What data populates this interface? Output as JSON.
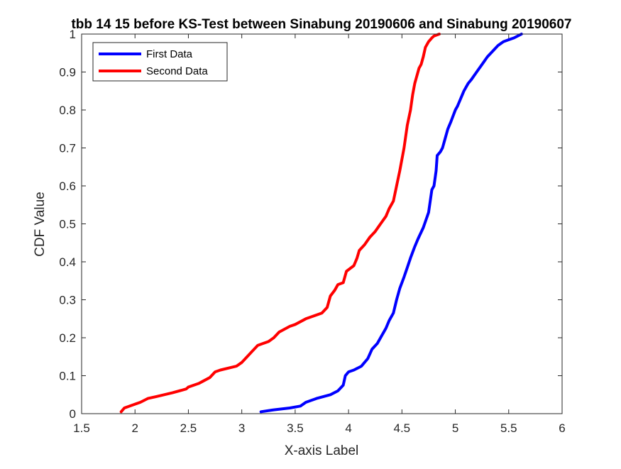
{
  "chart_data": {
    "type": "line",
    "title": "tbb 14 15 before KS-Test between Sinabung 20190606 and Sinabung 20190607",
    "xlabel": "X-axis Label",
    "ylabel": "CDF Value",
    "xlim": [
      1.5,
      6
    ],
    "ylim": [
      0,
      1
    ],
    "xticks": [
      1.5,
      2,
      2.5,
      3,
      3.5,
      4,
      4.5,
      5,
      5.5,
      6
    ],
    "xtick_labels": [
      "1.5",
      "2",
      "2.5",
      "3",
      "3.5",
      "4",
      "4.5",
      "5",
      "5.5",
      "6"
    ],
    "yticks": [
      0,
      0.1,
      0.2,
      0.3,
      0.4,
      0.5,
      0.6,
      0.7,
      0.8,
      0.9,
      1
    ],
    "ytick_labels": [
      "0",
      "0.1",
      "0.2",
      "0.3",
      "0.4",
      "0.5",
      "0.6",
      "0.7",
      "0.8",
      "0.9",
      "1"
    ],
    "grid": false,
    "legend_position": "top-left",
    "series": [
      {
        "name": "First Data",
        "color": "#0000ff",
        "x": [
          3.18,
          3.3,
          3.45,
          3.55,
          3.6,
          3.7,
          3.83,
          3.9,
          3.95,
          3.97,
          4.0,
          4.05,
          4.12,
          4.18,
          4.22,
          4.27,
          4.3,
          4.35,
          4.38,
          4.42,
          4.45,
          4.48,
          4.52,
          4.55,
          4.58,
          4.62,
          4.65,
          4.7,
          4.75,
          4.78,
          4.8,
          4.82,
          4.83,
          4.86,
          4.88,
          4.9,
          4.93,
          4.96,
          5.0,
          5.02,
          5.05,
          5.08,
          5.12,
          5.15,
          5.2,
          5.25,
          5.3,
          5.35,
          5.4,
          5.45,
          5.5,
          5.55,
          5.62
        ],
        "y": [
          0.005,
          0.01,
          0.015,
          0.02,
          0.03,
          0.04,
          0.05,
          0.06,
          0.075,
          0.1,
          0.11,
          0.115,
          0.125,
          0.145,
          0.17,
          0.185,
          0.2,
          0.225,
          0.245,
          0.265,
          0.3,
          0.33,
          0.36,
          0.385,
          0.41,
          0.44,
          0.46,
          0.49,
          0.53,
          0.59,
          0.6,
          0.64,
          0.68,
          0.69,
          0.7,
          0.72,
          0.75,
          0.77,
          0.8,
          0.81,
          0.83,
          0.85,
          0.87,
          0.88,
          0.9,
          0.92,
          0.94,
          0.955,
          0.97,
          0.98,
          0.985,
          0.99,
          1.0
        ]
      },
      {
        "name": "Second Data",
        "color": "#ff0000",
        "x": [
          1.87,
          1.9,
          2.0,
          2.05,
          2.12,
          2.2,
          2.35,
          2.48,
          2.5,
          2.6,
          2.7,
          2.75,
          2.8,
          2.95,
          3.0,
          3.05,
          3.1,
          3.15,
          3.2,
          3.25,
          3.3,
          3.35,
          3.45,
          3.5,
          3.6,
          3.75,
          3.8,
          3.83,
          3.87,
          3.9,
          3.95,
          3.98,
          4.05,
          4.08,
          4.1,
          4.15,
          4.2,
          4.25,
          4.3,
          4.35,
          4.38,
          4.42,
          4.45,
          4.48,
          4.52,
          4.55,
          4.58,
          4.6,
          4.62,
          4.65,
          4.66,
          4.68,
          4.7,
          4.72,
          4.75,
          4.78,
          4.8,
          4.85
        ],
        "y": [
          0.005,
          0.015,
          0.025,
          0.03,
          0.04,
          0.045,
          0.055,
          0.065,
          0.07,
          0.08,
          0.095,
          0.11,
          0.115,
          0.125,
          0.135,
          0.15,
          0.165,
          0.18,
          0.185,
          0.19,
          0.2,
          0.215,
          0.23,
          0.235,
          0.25,
          0.265,
          0.28,
          0.31,
          0.325,
          0.34,
          0.345,
          0.375,
          0.39,
          0.41,
          0.43,
          0.445,
          0.465,
          0.48,
          0.5,
          0.52,
          0.54,
          0.56,
          0.6,
          0.64,
          0.7,
          0.76,
          0.8,
          0.84,
          0.87,
          0.9,
          0.91,
          0.92,
          0.94,
          0.965,
          0.98,
          0.99,
          0.995,
          1.0
        ]
      }
    ]
  }
}
